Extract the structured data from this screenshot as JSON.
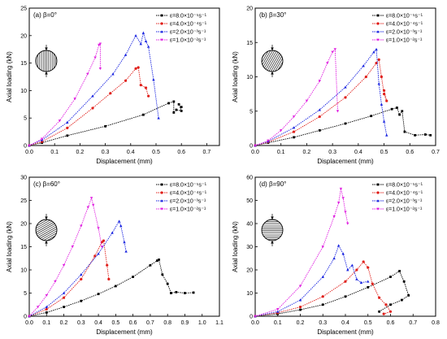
{
  "chart_data": [
    {
      "type": "line",
      "panel_label": "(a) β=0°",
      "xlabel": "Displacement (mm)",
      "ylabel": "Axial loading (kN)",
      "xlim": [
        0,
        0.75
      ],
      "ylim": [
        0,
        25
      ],
      "xticks": [
        "0.0",
        "0.1",
        "0.2",
        "0.3",
        "0.4",
        "0.5",
        "0.6",
        "0.7"
      ],
      "yticks": [
        "0",
        "5",
        "10",
        "15",
        "20",
        "25"
      ],
      "inset_pattern": "vertical-stripes",
      "legend_position": "top-right",
      "series": [
        {
          "name": "ε=8.0×10⁻⁵s⁻¹",
          "color": "#000000",
          "x": [
            0,
            0.05,
            0.15,
            0.3,
            0.45,
            0.55,
            0.57,
            0.57,
            0.58,
            0.6,
            0.59,
            0.6
          ],
          "y": [
            0,
            0.5,
            1.8,
            3.5,
            5.6,
            7.7,
            8.0,
            6.0,
            6.5,
            6.3,
            7.5,
            7.0
          ]
        },
        {
          "name": "ε=4.0×10⁻⁴s⁻¹",
          "color": "#e0201b",
          "x": [
            0,
            0.05,
            0.15,
            0.25,
            0.32,
            0.38,
            0.42,
            0.43,
            0.44,
            0.46,
            0.47
          ],
          "y": [
            0,
            0.7,
            3.2,
            6.8,
            9.5,
            11.8,
            14.0,
            14.2,
            11.0,
            10.5,
            9.0
          ]
        },
        {
          "name": "ε=2.0×10⁻³s⁻¹",
          "color": "#1a25e0",
          "x": [
            0,
            0.05,
            0.15,
            0.25,
            0.33,
            0.38,
            0.42,
            0.44,
            0.45,
            0.46,
            0.47,
            0.49,
            0.51
          ],
          "y": [
            0,
            1.0,
            4.2,
            9.0,
            13.0,
            16.5,
            20.0,
            18.5,
            20.5,
            19.0,
            18.0,
            12.0,
            5.0
          ]
        },
        {
          "name": "ε=1.0×10⁻²s⁻¹",
          "color": "#e020e0",
          "x": [
            0,
            0.05,
            0.12,
            0.18,
            0.23,
            0.26,
            0.275,
            0.28,
            0.28
          ],
          "y": [
            0,
            1.2,
            4.5,
            8.5,
            13.0,
            16.0,
            18.3,
            18.5,
            14.0
          ]
        }
      ]
    },
    {
      "type": "line",
      "panel_label": "(b) β=30°",
      "xlabel": "Displacement (mm)",
      "ylabel": "Axial loading (kN)",
      "xlim": [
        0,
        0.7
      ],
      "ylim": [
        0,
        20
      ],
      "xticks": [
        "0.0",
        "0.1",
        "0.2",
        "0.3",
        "0.4",
        "0.5",
        "0.6",
        "0.7"
      ],
      "yticks": [
        "0",
        "5",
        "10",
        "15",
        "20"
      ],
      "inset_pattern": "stripes-30deg",
      "legend_position": "top-right",
      "series": [
        {
          "name": "ε=8.0×10⁻⁵s⁻¹",
          "color": "#000000",
          "x": [
            0,
            0.05,
            0.15,
            0.25,
            0.35,
            0.45,
            0.53,
            0.55,
            0.56,
            0.57,
            0.58,
            0.62,
            0.66,
            0.68
          ],
          "y": [
            0,
            0.4,
            1.2,
            2.2,
            3.2,
            4.3,
            5.3,
            5.5,
            4.5,
            5.0,
            2.0,
            1.5,
            1.6,
            1.5
          ]
        },
        {
          "name": "ε=4.0×10⁻⁴s⁻¹",
          "color": "#e0201b",
          "x": [
            0,
            0.05,
            0.15,
            0.25,
            0.35,
            0.43,
            0.47,
            0.48,
            0.49,
            0.5,
            0.51,
            0.5
          ],
          "y": [
            0,
            0.5,
            2.0,
            4.2,
            7.0,
            10.0,
            12.0,
            12.5,
            10.0,
            7.5,
            6.5,
            8.0
          ]
        },
        {
          "name": "ε=2.0×10⁻³s⁻¹",
          "color": "#1a25e0",
          "x": [
            0,
            0.05,
            0.15,
            0.25,
            0.35,
            0.42,
            0.46,
            0.47,
            0.48,
            0.49,
            0.5,
            0.51
          ],
          "y": [
            0,
            0.6,
            2.6,
            5.2,
            8.5,
            11.6,
            13.6,
            14.0,
            9.0,
            6.0,
            3.5,
            1.5
          ]
        },
        {
          "name": "ε=1.0×10⁻²s⁻¹",
          "color": "#e020e0",
          "x": [
            0,
            0.05,
            0.1,
            0.15,
            0.2,
            0.25,
            0.28,
            0.3,
            0.31,
            0.32
          ],
          "y": [
            0,
            0.7,
            2.2,
            4.2,
            6.5,
            9.4,
            12.0,
            13.6,
            14.0,
            5.0
          ]
        }
      ]
    },
    {
      "type": "line",
      "panel_label": "(c) β=60°",
      "xlabel": "Displacement (mm)",
      "ylabel": "Axial loading (kN)",
      "xlim": [
        0,
        1.1
      ],
      "ylim": [
        0,
        30
      ],
      "xticks": [
        "0.0",
        "0.1",
        "0.2",
        "0.3",
        "0.4",
        "0.5",
        "0.6",
        "0.7",
        "0.8",
        "0.9",
        "1.0",
        "1.1"
      ],
      "yticks": [
        "0",
        "5",
        "10",
        "15",
        "20",
        "25",
        "30"
      ],
      "inset_pattern": "stripes-60deg",
      "legend_position": "top-right",
      "series": [
        {
          "name": "ε=8.0×10⁻⁵s⁻¹",
          "color": "#000000",
          "x": [
            0,
            0.1,
            0.2,
            0.3,
            0.4,
            0.5,
            0.6,
            0.7,
            0.74,
            0.75,
            0.77,
            0.8,
            0.82,
            0.85,
            0.9,
            0.95
          ],
          "y": [
            0,
            0.8,
            2.0,
            3.3,
            4.8,
            6.5,
            8.5,
            11.0,
            12.0,
            12.2,
            9.0,
            7.0,
            5.0,
            5.2,
            5.0,
            5.1
          ]
        },
        {
          "name": "ε=4.0×10⁻⁴s⁻¹",
          "color": "#e0201b",
          "x": [
            0,
            0.1,
            0.2,
            0.3,
            0.38,
            0.42,
            0.43,
            0.45,
            0.46
          ],
          "y": [
            0,
            1.5,
            4.0,
            8.0,
            13.0,
            16.0,
            16.3,
            11.0,
            8.0
          ]
        },
        {
          "name": "ε=2.0×10⁻³s⁻¹",
          "color": "#1a25e0",
          "x": [
            0,
            0.1,
            0.2,
            0.3,
            0.4,
            0.48,
            0.52,
            0.53,
            0.55,
            0.56
          ],
          "y": [
            0,
            2.0,
            5.0,
            9.0,
            13.5,
            18.0,
            20.5,
            19.5,
            16.0,
            14.0
          ]
        },
        {
          "name": "ε=1.0×10⁻²s⁻¹",
          "color": "#e020e0",
          "x": [
            0,
            0.05,
            0.1,
            0.15,
            0.2,
            0.25,
            0.3,
            0.34,
            0.36,
            0.37,
            0.4,
            0.42
          ],
          "y": [
            0,
            2.0,
            4.5,
            7.5,
            11.0,
            15.0,
            19.5,
            23.5,
            25.5,
            24.0,
            19.0,
            15.0
          ]
        }
      ]
    },
    {
      "type": "line",
      "panel_label": "(d) β=90°",
      "xlabel": "Displacement (mm)",
      "ylabel": "Axial loading (kN)",
      "xlim": [
        0,
        0.8
      ],
      "ylim": [
        0,
        60
      ],
      "xticks": [
        "0.0",
        "0.1",
        "0.2",
        "0.3",
        "0.4",
        "0.5",
        "0.6",
        "0.7",
        "0.8"
      ],
      "yticks": [
        "0",
        "10",
        "20",
        "30",
        "40",
        "50",
        "60"
      ],
      "inset_pattern": "horizontal-stripes",
      "legend_position": "top-right",
      "series": [
        {
          "name": "ε=8.0×10⁻⁵s⁻¹",
          "color": "#000000",
          "x": [
            0,
            0.1,
            0.2,
            0.3,
            0.4,
            0.5,
            0.6,
            0.64,
            0.66,
            0.68,
            0.65,
            0.6,
            0.55
          ],
          "y": [
            0,
            1.0,
            2.8,
            5.0,
            8.5,
            12.5,
            17.0,
            19.5,
            15.0,
            9.0,
            7.0,
            5.0,
            2.0
          ]
        },
        {
          "name": "ε=4.0×10⁻⁴s⁻¹",
          "color": "#e0201b",
          "x": [
            0,
            0.1,
            0.2,
            0.3,
            0.4,
            0.45,
            0.48,
            0.5,
            0.52,
            0.55,
            0.58,
            0.6,
            0.57
          ],
          "y": [
            0,
            1.5,
            4.0,
            8.5,
            15.0,
            20.0,
            23.5,
            21.0,
            14.0,
            8.0,
            5.0,
            2.0,
            1.0
          ]
        },
        {
          "name": "ε=2.0×10⁻³s⁻¹",
          "color": "#1a25e0",
          "x": [
            0,
            0.1,
            0.2,
            0.3,
            0.35,
            0.37,
            0.39,
            0.41,
            0.43,
            0.45,
            0.47,
            0.5
          ],
          "y": [
            0,
            2.0,
            7.0,
            17.0,
            25.0,
            30.5,
            27.0,
            20.0,
            22.0,
            16.0,
            14.5,
            15.0
          ]
        },
        {
          "name": "ε=1.0×10⁻²s⁻¹",
          "color": "#e020e0",
          "x": [
            0,
            0.1,
            0.2,
            0.3,
            0.35,
            0.37,
            0.38,
            0.39,
            0.4,
            0.41
          ],
          "y": [
            0,
            3.0,
            13.0,
            30.0,
            43.0,
            49.0,
            55.0,
            51.0,
            45.0,
            40.0
          ]
        }
      ]
    }
  ]
}
